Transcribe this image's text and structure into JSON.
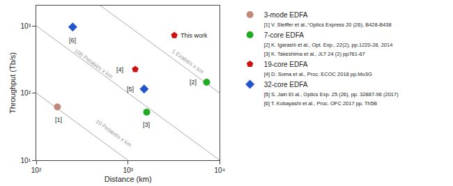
{
  "chart_data": {
    "type": "scatter",
    "log": true,
    "xlabel": "Distance (km)",
    "ylabel": "Throughput (Tb/s)",
    "xlim": [
      100,
      10000
    ],
    "ylim": [
      10,
      2000
    ],
    "xticks": [
      {
        "value": 100,
        "label": "10²"
      },
      {
        "value": 1000,
        "label": "10³"
      },
      {
        "value": 10000,
        "label": "10⁴"
      }
    ],
    "yticks": [
      {
        "value": 10,
        "label": "10¹"
      },
      {
        "value": 100,
        "label": "10²"
      },
      {
        "value": 1000,
        "label": "10³"
      }
    ],
    "grid": false,
    "legend": "right",
    "series": [
      {
        "name": "3-mode EDFA",
        "color": "#c08878",
        "marker": "circle",
        "x": [
          170
        ],
        "values": [
          62
        ],
        "labels": [
          "[1]"
        ],
        "label_x": [
          175
        ],
        "label_y": [
          47
        ],
        "references": [
          "[1] V. Sleiffer et al.,“Optics Express 20 (26), B428-B438"
        ]
      },
      {
        "name": "7-core EDFA",
        "color": "#22aa22",
        "marker": "circle",
        "x": [
          7200,
          1600
        ],
        "values": [
          145,
          52
        ],
        "labels": [
          "[2]",
          "[3]"
        ],
        "label_x": [
          5800,
          1600
        ],
        "label_y": [
          145,
          40
        ],
        "references": [
          "[2] K. Igarashi et al., Opt. Exp., 22(2), pp.1220-28, 2014",
          "[3] K. Takeshima et al., JLT 24 (2) pp761-67"
        ]
      },
      {
        "name": "19-core EDFA",
        "color": "#cc1111",
        "marker": "pentagon",
        "x": [
          1200,
          3200
        ],
        "values": [
          225,
          720
        ],
        "labels": [
          "[4]",
          "This work"
        ],
        "label_x": [
          920,
          3600
        ],
        "label_y": [
          225,
          720
        ],
        "references": [
          "[4] D. Soma et al., Proc. ECOC 2018 pp.Mo3G"
        ]
      },
      {
        "name": "32-core EDFA",
        "color": "#2255cc",
        "marker": "diamond",
        "x": [
          1500,
          250
        ],
        "values": [
          115,
          960
        ],
        "labels": [
          "[5]",
          "[6]"
        ],
        "label_x": [
          1200,
          250
        ],
        "label_y": [
          115,
          720
        ],
        "references": [
          "[5] S. Jain Et al., Optics Exp. 25 (26), pp. 32887-96 (2017)",
          "[6] T. Kobayashi et al., Proc. OFC 2017 pp. Th5B"
        ]
      }
    ],
    "lines": [
      {
        "type": "line",
        "label": "1 Exabit/s x km",
        "color": "#aaaaaa",
        "x": [
          500,
          10000
        ],
        "values": [
          2000,
          100
        ],
        "label_x": 4500,
        "label_y": 290
      },
      {
        "type": "line",
        "label": "100 Petabit/s x km",
        "color": "#aaaaaa",
        "x": [
          100,
          10000
        ],
        "values": [
          1000,
          10
        ],
        "label_x": 420,
        "label_y": 270
      },
      {
        "type": "line",
        "label": "10 Petabit/s x km",
        "color": "#aaaaaa",
        "x": [
          100,
          1000
        ],
        "values": [
          100,
          10
        ],
        "label_x": 700,
        "label_y": 25
      }
    ]
  }
}
